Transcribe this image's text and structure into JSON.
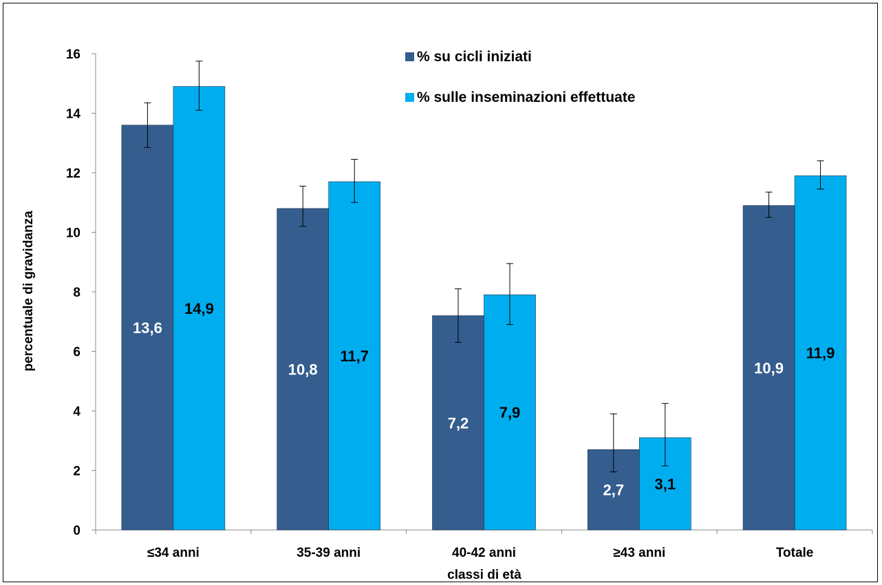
{
  "chart_data": {
    "type": "bar",
    "title": "",
    "xlabel": "classi di età",
    "ylabel": "percentuale di gravidanza",
    "ylim": [
      0,
      16
    ],
    "yticks": [
      "0",
      "2",
      "4",
      "6",
      "8",
      "10",
      "12",
      "14",
      "16"
    ],
    "categories": [
      "≤34 anni",
      "35-39 anni",
      "40-42 anni",
      "≥43 anni",
      "Totale"
    ],
    "series": [
      {
        "name": "% su cicli iniziati",
        "color": "#355E8F",
        "label_color": "#ffffff",
        "values": [
          13.6,
          10.8,
          7.2,
          2.7,
          10.9
        ],
        "labels": [
          "13,6",
          "10,8",
          "7,2",
          "2,7",
          "10,9"
        ],
        "error_low": [
          12.85,
          10.2,
          6.3,
          1.95,
          10.5
        ],
        "error_high": [
          14.35,
          11.55,
          8.1,
          3.9,
          11.35
        ]
      },
      {
        "name": "% sulle inseminazioni effettuate",
        "color": "#00AEEF",
        "label_color": "#000000",
        "values": [
          14.9,
          11.7,
          7.9,
          3.1,
          11.9
        ],
        "labels": [
          "14,9",
          "11,7",
          "7,9",
          "3,1",
          "11,9"
        ],
        "error_low": [
          14.1,
          11.0,
          6.9,
          2.15,
          11.45
        ],
        "error_high": [
          15.75,
          12.45,
          8.95,
          4.25,
          12.4
        ]
      }
    ],
    "legend_position": "top-center",
    "grid": false
  }
}
